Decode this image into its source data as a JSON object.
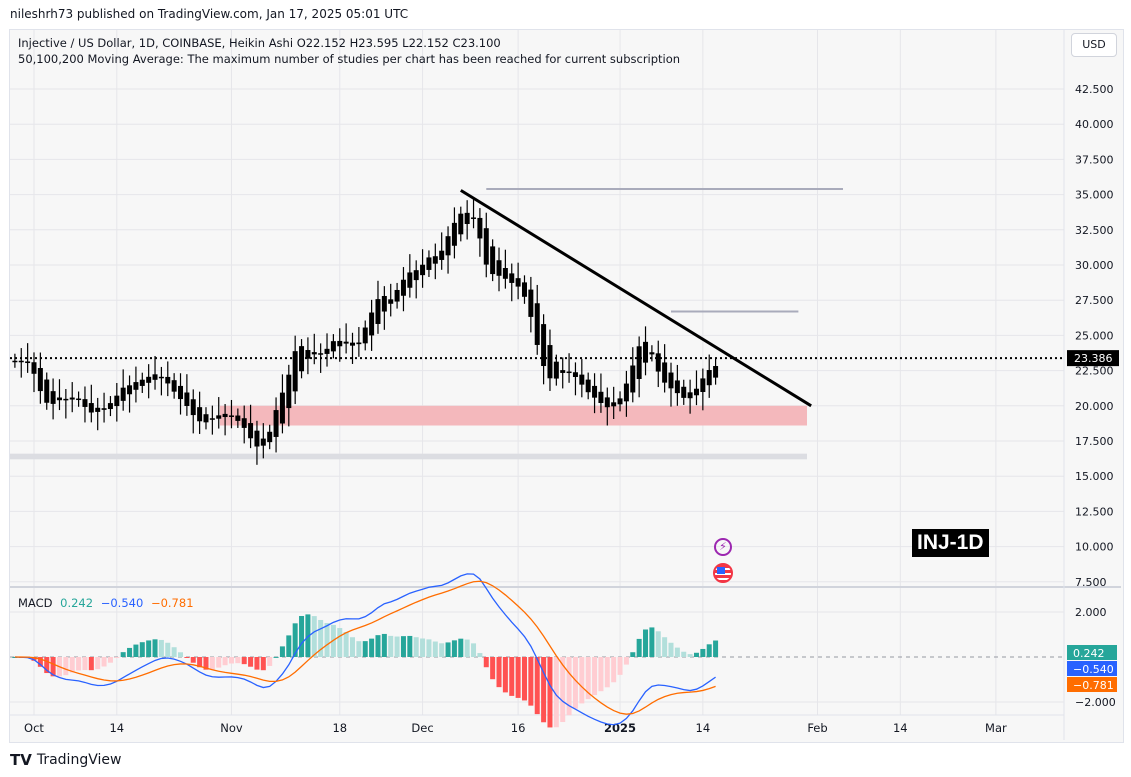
{
  "header": {
    "published": "nileshrh73 published on TradingView.com, Jan 17, 2025 05:01 UTC"
  },
  "legend": {
    "symbol_line": "Injective / US Dollar, 1D, COINBASE, Heikin Ashi  O22.152  H23.595  L22.152  C23.100",
    "study_line": "50,100,200 Moving Average: The maximum number of studies per chart has been reached for current subscription"
  },
  "currency_button": "USD",
  "badge": "INJ-1D",
  "footer": {
    "brand": "TradingView"
  },
  "macd": {
    "label": "MACD",
    "hist": "0.242",
    "macd": "−0.540",
    "signal": "−0.781",
    "colors": {
      "hist": "#26a69a",
      "macd": "#2962ff",
      "signal": "#ff6d00"
    },
    "ticks": [
      "2.000",
      "−2.000"
    ]
  },
  "chart_data": {
    "type": "candlestick",
    "title": "Injective / US Dollar, 1D, COINBASE, Heikin Ashi",
    "start_date": "2024-09-28",
    "closes": [
      23.2,
      23.0,
      23.0,
      21.5,
      20.0,
      19.5,
      20.0,
      20.5,
      20.3,
      20.8,
      20.2,
      19.5,
      19.2,
      19.6,
      20.0,
      20.5,
      21.2,
      21.8,
      21.6,
      22.0,
      22.0,
      22.3,
      22.4,
      21.9,
      21.2,
      20.5,
      20.0,
      19.5,
      18.7,
      18.5,
      18.7,
      19.2,
      19.5,
      19.5,
      19.2,
      18.6,
      18.0,
      17.0,
      16.6,
      17.2,
      19.0,
      21.0,
      22.0,
      23.5,
      25.5,
      24.5,
      24.0,
      23.8,
      23.5,
      24.5,
      25.0,
      24.6,
      24.6,
      24.0,
      24.8,
      26.5,
      27.5,
      28.5,
      28.0,
      27.5,
      29.0,
      29.5,
      30.0,
      29.8,
      30.5,
      31.0,
      30.7,
      31.5,
      33.0,
      33.8,
      34.3,
      33.8,
      33.2,
      30.5,
      28.5,
      28.8,
      28.9,
      28.7,
      28.4,
      28.2,
      27.0,
      25.0,
      22.5,
      21.5,
      21.0,
      21.8,
      22.5,
      22.2,
      21.8,
      21.0,
      20.5,
      20.2,
      19.8,
      19.6,
      20.0,
      21.0,
      22.5,
      24.0,
      25.5,
      24.8,
      23.0,
      21.5,
      21.0,
      20.8,
      20.5,
      20.2,
      20.5,
      21.8,
      22.5,
      23.1,
      23.1
    ],
    "price_ticks": [
      "42.500",
      "40.000",
      "37.500",
      "35.000",
      "32.500",
      "30.000",
      "27.500",
      "25.000",
      "22.500",
      "20.000",
      "17.500",
      "15.000",
      "12.500",
      "10.000",
      "7.500"
    ],
    "ylim": [
      7.5,
      43.5
    ],
    "last_price": "23.386",
    "x_ticks": [
      {
        "label": "Oct",
        "day": 0
      },
      {
        "label": "14",
        "day": 13
      },
      {
        "label": "Nov",
        "day": 31
      },
      {
        "label": "18",
        "day": 48
      },
      {
        "label": "Dec",
        "day": 61
      },
      {
        "label": "16",
        "day": 76
      },
      {
        "label": "2025",
        "day": 92
      },
      {
        "label": "14",
        "day": 105
      },
      {
        "label": "Feb",
        "day": 123
      },
      {
        "label": "14",
        "day": 136
      },
      {
        "label": "Mar",
        "day": 151
      }
    ],
    "drawings": {
      "trendline": [
        [
          67,
          35.3
        ],
        [
          122,
          20.0
        ]
      ],
      "resistance_lines": [
        {
          "price": 35.4,
          "from": 71,
          "to": 127
        },
        {
          "price": 26.7,
          "from": 100,
          "to": 120
        }
      ],
      "support_zone": [
        18.6,
        20.0
      ],
      "lower_zone": [
        16.2,
        16.6
      ]
    }
  }
}
